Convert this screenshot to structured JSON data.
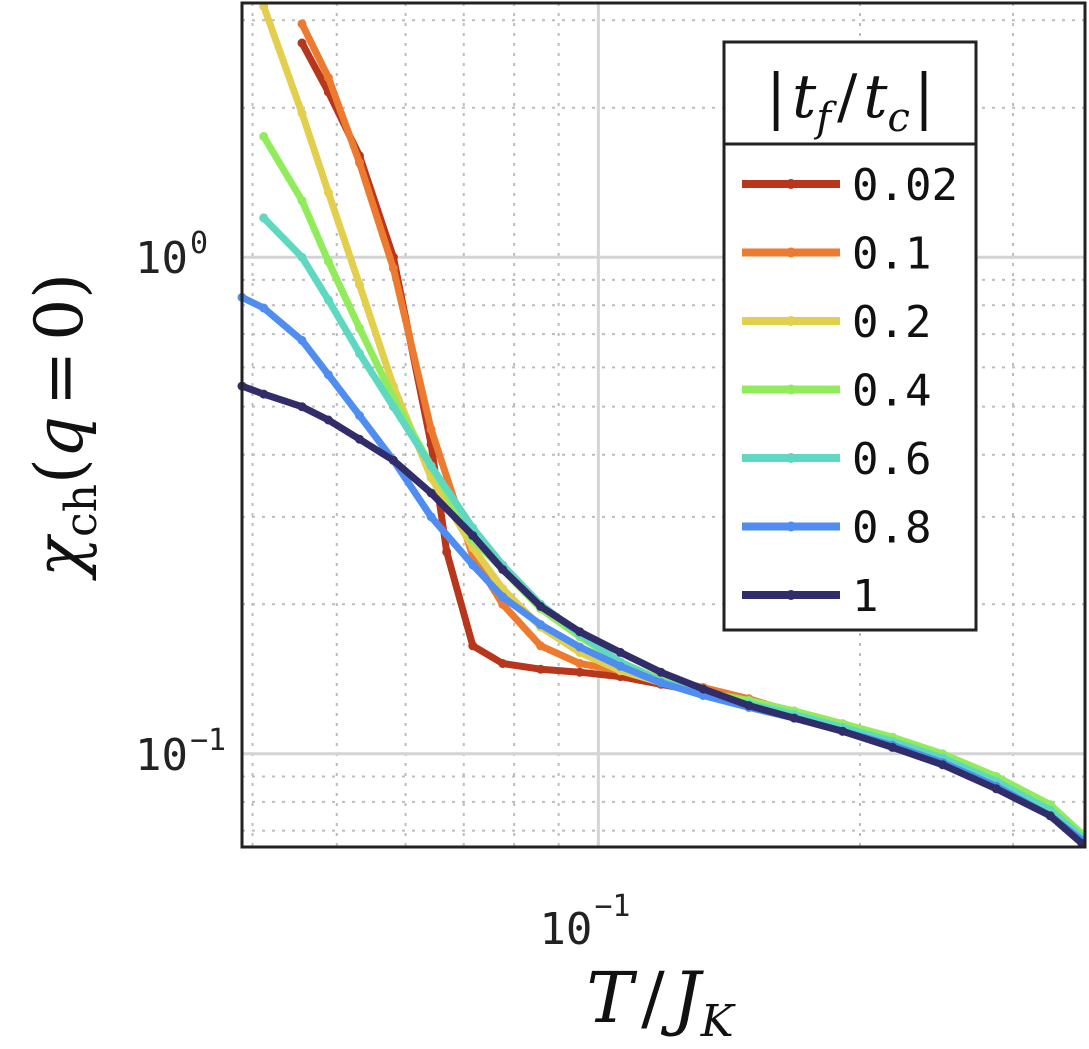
{
  "chart_data": {
    "type": "line",
    "x_scale": "log",
    "y_scale": "log",
    "xlim": [
      0.0389,
      0.363
    ],
    "ylim": [
      0.0649,
      3.25
    ],
    "xticks": [
      {
        "value": 0.1,
        "base": "10",
        "exp": "−1"
      }
    ],
    "yticks": [
      {
        "value": 0.1,
        "base": "10",
        "exp": "−1"
      },
      {
        "value": 1,
        "base": "10",
        "exp": "0"
      }
    ],
    "xlabel": "T / J_K",
    "ylabel": "χ_ch(q = 0)",
    "grid": true,
    "legend": {
      "title": "|t_f / t_c|",
      "position": "top-right"
    },
    "series": [
      {
        "name": "0.02",
        "color": "#b8361c",
        "x": [
          0.0456,
          0.0489,
          0.0531,
          0.0581,
          0.0642,
          0.0669,
          0.0717,
          0.0776,
          0.0858,
          0.0952,
          0.106,
          0.118,
          0.132,
          0.149,
          0.168,
          0.191,
          0.218,
          0.249,
          0.287,
          0.331,
          0.36
        ],
        "y": [
          2.7,
          2.15,
          1.6,
          1.0,
          0.42,
          0.255,
          0.165,
          0.152,
          0.148,
          0.146,
          0.143,
          0.138,
          0.133,
          0.127,
          0.12,
          0.113,
          0.105,
          0.097,
          0.087,
          0.076,
          0.068
        ]
      },
      {
        "name": "0.1",
        "color": "#ec7a2f",
        "x": [
          0.0456,
          0.0489,
          0.0531,
          0.0581,
          0.0642,
          0.0717,
          0.0776,
          0.0858,
          0.0952,
          0.106,
          0.118,
          0.132,
          0.149,
          0.168,
          0.191,
          0.218,
          0.249,
          0.287,
          0.331,
          0.36
        ],
        "y": [
          2.95,
          2.3,
          1.55,
          0.95,
          0.45,
          0.25,
          0.2,
          0.165,
          0.152,
          0.147,
          0.142,
          0.136,
          0.129,
          0.121,
          0.113,
          0.105,
          0.097,
          0.087,
          0.077,
          0.068
        ]
      },
      {
        "name": "0.2",
        "color": "#e2cf4e",
        "x": [
          0.0412,
          0.0456,
          0.0489,
          0.0531,
          0.0581,
          0.0642,
          0.0717,
          0.0776,
          0.0858,
          0.0952,
          0.106,
          0.118,
          0.132,
          0.149,
          0.168,
          0.191,
          0.218,
          0.249,
          0.287,
          0.331,
          0.36
        ],
        "y": [
          3.2,
          1.95,
          1.35,
          0.88,
          0.55,
          0.36,
          0.26,
          0.215,
          0.18,
          0.16,
          0.147,
          0.139,
          0.132,
          0.127,
          0.121,
          0.114,
          0.107,
          0.099,
          0.089,
          0.078,
          0.069
        ]
      },
      {
        "name": "0.4",
        "color": "#90ec5a",
        "x": [
          0.0412,
          0.0456,
          0.0489,
          0.0531,
          0.0581,
          0.0642,
          0.0717,
          0.0776,
          0.0858,
          0.0952,
          0.106,
          0.118,
          0.132,
          0.149,
          0.168,
          0.191,
          0.218,
          0.249,
          0.287,
          0.331,
          0.36
        ],
        "y": [
          1.75,
          1.3,
          0.98,
          0.72,
          0.52,
          0.38,
          0.27,
          0.235,
          0.196,
          0.172,
          0.153,
          0.141,
          0.133,
          0.128,
          0.122,
          0.115,
          0.108,
          0.1,
          0.09,
          0.079,
          0.069
        ]
      },
      {
        "name": "0.6",
        "color": "#5ed8c0",
        "x": [
          0.0412,
          0.0456,
          0.0489,
          0.0531,
          0.0581,
          0.0642,
          0.0717,
          0.0776,
          0.0858,
          0.0952,
          0.106,
          0.118,
          0.132,
          0.149,
          0.168,
          0.191,
          0.218,
          0.249,
          0.287,
          0.331,
          0.36
        ],
        "y": [
          1.2,
          1.0,
          0.82,
          0.64,
          0.5,
          0.38,
          0.285,
          0.24,
          0.2,
          0.174,
          0.153,
          0.14,
          0.132,
          0.126,
          0.12,
          0.113,
          0.106,
          0.098,
          0.088,
          0.077,
          0.068
        ]
      },
      {
        "name": "0.8",
        "color": "#4f8ef0",
        "x": [
          0.0389,
          0.0412,
          0.0456,
          0.0489,
          0.0531,
          0.0581,
          0.0642,
          0.0717,
          0.0776,
          0.0858,
          0.0952,
          0.106,
          0.118,
          0.132,
          0.149,
          0.168,
          0.191,
          0.218,
          0.249,
          0.287,
          0.331,
          0.36
        ],
        "y": [
          0.83,
          0.79,
          0.68,
          0.58,
          0.48,
          0.39,
          0.3,
          0.24,
          0.207,
          0.182,
          0.164,
          0.15,
          0.139,
          0.131,
          0.124,
          0.118,
          0.111,
          0.104,
          0.096,
          0.086,
          0.075,
          0.067
        ]
      },
      {
        "name": "1",
        "color": "#312d6a",
        "x": [
          0.0389,
          0.0412,
          0.0456,
          0.0489,
          0.0531,
          0.0581,
          0.0642,
          0.0717,
          0.0776,
          0.0858,
          0.0952,
          0.106,
          0.118,
          0.132,
          0.149,
          0.168,
          0.191,
          0.218,
          0.249,
          0.287,
          0.331,
          0.36
        ],
        "y": [
          0.55,
          0.53,
          0.5,
          0.47,
          0.43,
          0.39,
          0.335,
          0.275,
          0.235,
          0.198,
          0.176,
          0.16,
          0.146,
          0.135,
          0.125,
          0.118,
          0.111,
          0.103,
          0.095,
          0.085,
          0.075,
          0.066
        ]
      }
    ]
  }
}
